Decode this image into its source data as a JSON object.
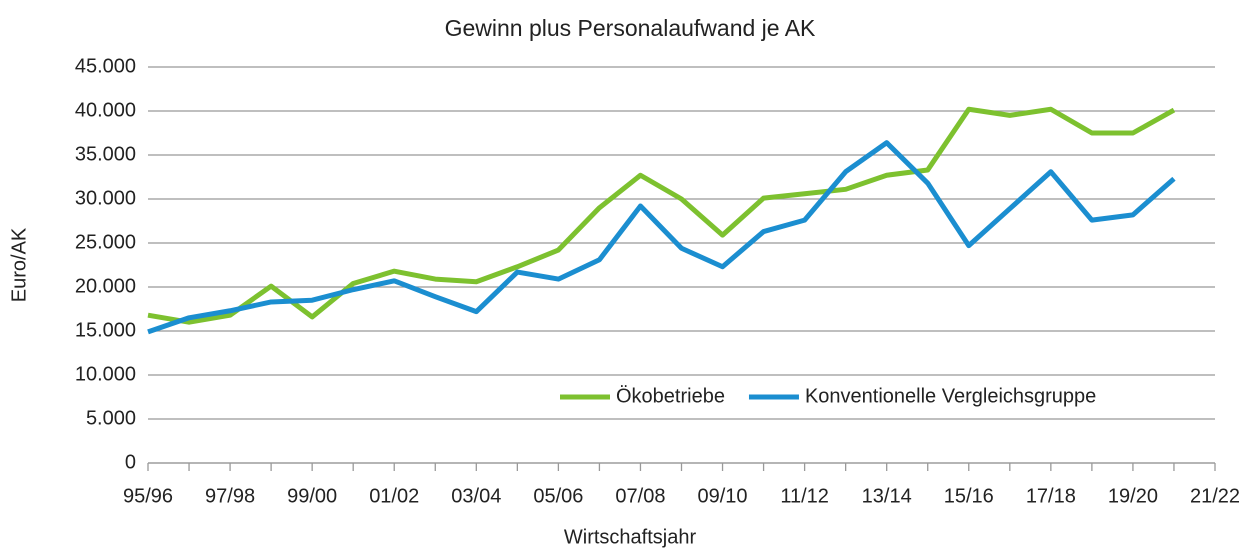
{
  "chart_data": {
    "type": "line",
    "title": "Gewinn plus Personalaufwand je AK",
    "x_label": "Wirtschaftsjahr",
    "y_label": "Euro/AK",
    "categories": [
      "95/96",
      null,
      "97/98",
      null,
      "99/00",
      null,
      "01/02",
      null,
      "03/04",
      null,
      "05/06",
      null,
      "07/08",
      null,
      "09/10",
      null,
      "11/12",
      null,
      "13/14",
      null,
      "15/16",
      null,
      "17/18",
      null,
      "19/20",
      null,
      "21/22"
    ],
    "series": [
      {
        "name": "Ökobetriebe",
        "color": "#7dc12f",
        "values": [
          16800,
          16000,
          16800,
          20100,
          16600,
          20400,
          21800,
          20900,
          20600,
          22300,
          24200,
          29000,
          32700,
          30000,
          25900,
          30100,
          30600,
          31100,
          32700,
          33300,
          40200,
          39500,
          40200,
          37500,
          37500,
          40100,
          null
        ]
      },
      {
        "name": "Konventionelle Vergleichsgruppe",
        "color": "#1b8ed0",
        "values": [
          14900,
          16500,
          17300,
          18300,
          18500,
          19700,
          20700,
          18900,
          17200,
          21700,
          20900,
          23100,
          29200,
          24400,
          22300,
          26300,
          27600,
          33100,
          36400,
          31800,
          24700,
          28900,
          33100,
          27600,
          28200,
          32300,
          null
        ]
      }
    ],
    "ylim": [
      0,
      45000
    ],
    "yticks": [
      0,
      {
        "value": 5000,
        "label": "5.000"
      },
      {
        "value": 10000,
        "label": "10.000"
      },
      {
        "value": 15000,
        "label": "15.000"
      },
      {
        "value": 20000,
        "label": "20.000"
      },
      {
        "value": 25000,
        "label": "25.000"
      },
      {
        "value": 30000,
        "label": "30.000"
      },
      {
        "value": 35000,
        "label": "35.000"
      },
      {
        "value": 40000,
        "label": "40.000"
      },
      {
        "value": 45000,
        "label": "45.000"
      }
    ],
    "grid": true,
    "legend": "lower right"
  }
}
